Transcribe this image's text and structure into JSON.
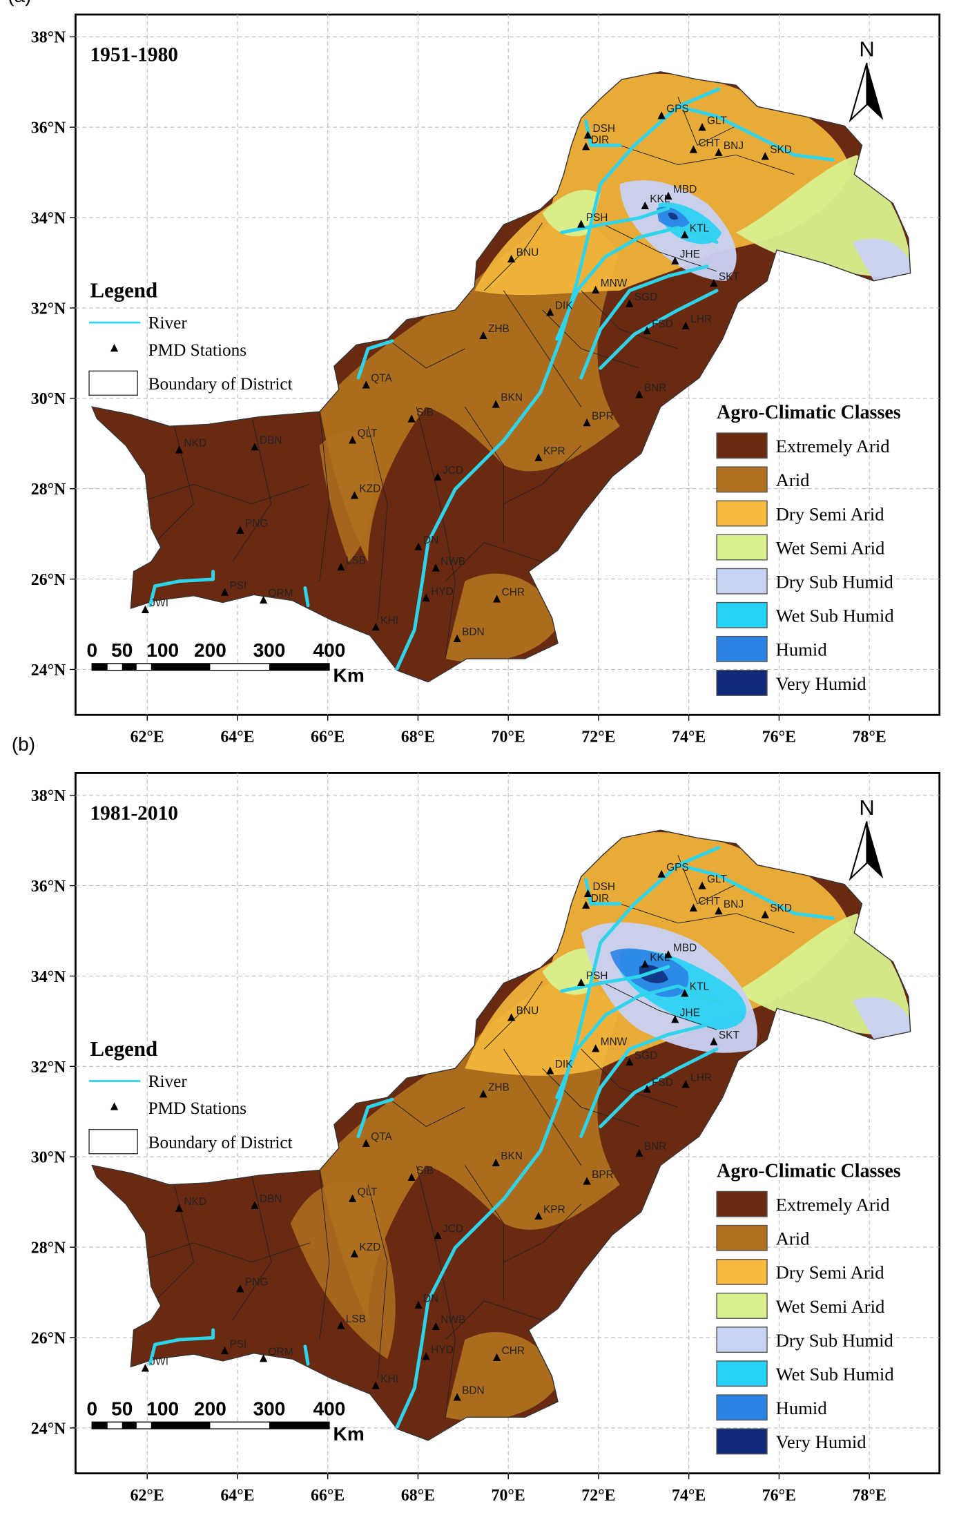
{
  "panels": [
    {
      "label": "(a)",
      "period": "1951-1980"
    },
    {
      "label": "(b)",
      "period": "1981-2010"
    }
  ],
  "lat_ticks": [
    "38°N",
    "36°N",
    "34°N",
    "32°N",
    "30°N",
    "28°N",
    "26°N",
    "24°N"
  ],
  "lon_ticks": [
    "62°E",
    "64°E",
    "66°E",
    "68°E",
    "70°E",
    "72°E",
    "74°E",
    "76°E",
    "78°E"
  ],
  "north": "N",
  "legend": {
    "title": "Legend",
    "items": [
      "River",
      "PMD Stations",
      "Boundary of District"
    ]
  },
  "classes": {
    "title": "Agro-Climatic Classes",
    "items": [
      {
        "name": "Extremely Arid",
        "color": "#6a2a12"
      },
      {
        "name": "Arid",
        "color": "#b0701f"
      },
      {
        "name": "Dry Semi Arid",
        "color": "#f7b93d"
      },
      {
        "name": "Wet Semi Arid",
        "color": "#d9f08f"
      },
      {
        "name": "Dry Sub Humid",
        "color": "#c8d2f2"
      },
      {
        "name": "Wet Sub Humid",
        "color": "#26d2f5"
      },
      {
        "name": "Humid",
        "color": "#2b83e6"
      },
      {
        "name": "Very Humid",
        "color": "#0f2a78"
      }
    ]
  },
  "scale": {
    "labels": [
      "0",
      "50",
      "100",
      "200",
      "300",
      "400"
    ],
    "unit": "Km"
  },
  "stations": [
    "GPS",
    "GLT",
    "CHT",
    "BNJ",
    "SKD",
    "DSH",
    "DIR",
    "PSH",
    "KKL",
    "MBD",
    "KTL",
    "JHE",
    "SKT",
    "BNU",
    "DIK",
    "MNW",
    "SGD",
    "FSD",
    "LHR",
    "ZHB",
    "QTA",
    "QLT",
    "SIB",
    "BKN",
    "BNR",
    "BPR",
    "KPR",
    "JCD",
    "DN",
    "NWB",
    "NKD",
    "DBN",
    "PNG",
    "KZD",
    "LSB",
    "KHI",
    "BDN",
    "CHR",
    "HYD",
    "ORM",
    "PSI",
    "JWI"
  ]
}
